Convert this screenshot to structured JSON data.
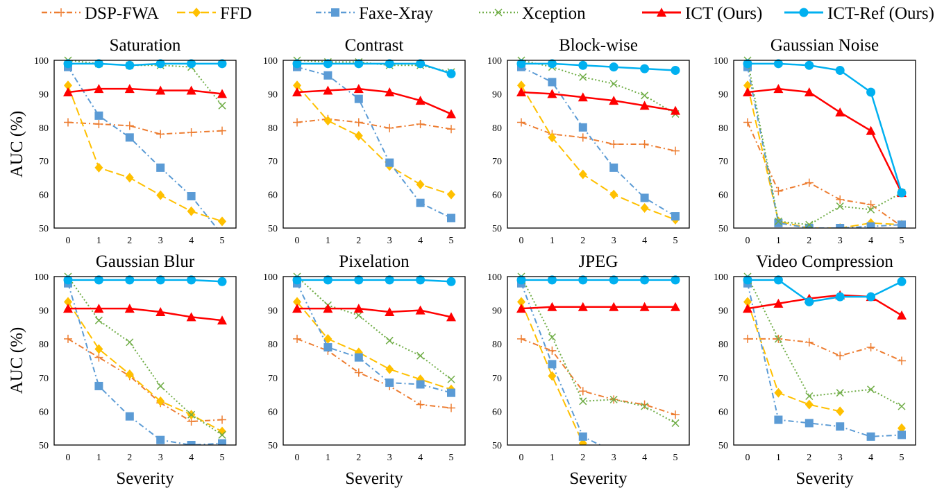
{
  "chart_data": {
    "type": "line",
    "legend_position": "top",
    "ylabel": "AUC (%)",
    "xlabel": "Severity",
    "x": [
      0,
      1,
      2,
      3,
      4,
      5
    ],
    "x_ticks": [
      "0",
      "1",
      "2",
      "3",
      "4",
      "5"
    ],
    "ylim": [
      50,
      100
    ],
    "y_ticks": [
      "50",
      "60",
      "70",
      "80",
      "90",
      "100"
    ],
    "grid": false,
    "series_styles": [
      {
        "name": "DSP-FWA",
        "color": "#ED7D31",
        "marker": "plus",
        "dash": "dash-dot"
      },
      {
        "name": "FFD",
        "color": "#FFC000",
        "marker": "diamond",
        "dash": "long-dash"
      },
      {
        "name": "Faxe-Xray",
        "color": "#5B9BD5",
        "marker": "square",
        "dash": "dash-dot"
      },
      {
        "name": "Xception",
        "color": "#70AD47",
        "marker": "x",
        "dash": "dotted"
      },
      {
        "name": "ICT (Ours)",
        "color": "#FF0000",
        "marker": "triangle",
        "dash": "solid"
      },
      {
        "name": "ICT-Ref (Ours)",
        "color": "#00B0F0",
        "marker": "circle",
        "dash": "solid"
      }
    ],
    "panels": [
      {
        "title": "Saturation",
        "series": [
          [
            81.5,
            81,
            80.5,
            78,
            78.5,
            79
          ],
          [
            92.5,
            68,
            65,
            59.8,
            55,
            52
          ],
          [
            98,
            83.5,
            77,
            68,
            59.5,
            48
          ],
          [
            100,
            99,
            98.5,
            98.5,
            98,
            86.5
          ],
          [
            90.5,
            91.5,
            91.5,
            91,
            91,
            90
          ],
          [
            99,
            99,
            98.5,
            99,
            99,
            99
          ]
        ]
      },
      {
        "title": "Contrast",
        "series": [
          [
            81.5,
            82.5,
            81.5,
            79.8,
            81,
            79.5
          ],
          [
            92.5,
            82,
            77.5,
            68.5,
            63,
            60
          ],
          [
            98,
            95.5,
            88.5,
            69.5,
            57.5,
            53
          ],
          [
            100,
            99.5,
            99.5,
            98.5,
            98.5,
            96.5
          ],
          [
            90.5,
            91,
            91.5,
            90.5,
            88,
            84
          ],
          [
            99,
            99,
            99,
            99,
            99,
            96
          ]
        ]
      },
      {
        "title": "Block-wise",
        "series": [
          [
            81.5,
            78,
            77,
            75,
            75,
            73
          ],
          [
            92.5,
            77,
            66,
            60,
            56,
            52.5
          ],
          [
            98,
            93.5,
            80,
            68,
            59,
            53.5
          ],
          [
            100,
            98,
            95,
            93,
            89.5,
            84
          ],
          [
            90.5,
            90,
            89,
            88,
            86.5,
            85
          ],
          [
            99,
            99,
            98.5,
            98,
            97.5,
            97
          ]
        ]
      },
      {
        "title": "Gaussian Noise",
        "series": [
          [
            81.5,
            61,
            63.5,
            58.5,
            57,
            50.5
          ],
          [
            92.5,
            52,
            50,
            50,
            51.5,
            51
          ],
          [
            98,
            51.5,
            50,
            50,
            50.5,
            51
          ],
          [
            100,
            52,
            51,
            56.5,
            55.5,
            60.5
          ],
          [
            90.5,
            91.5,
            90.5,
            84.5,
            79,
            60.5
          ],
          [
            99,
            99,
            98.5,
            97,
            90.5,
            60.5
          ]
        ]
      },
      {
        "title": "Gaussian Blur",
        "series": [
          [
            81.5,
            76,
            70.5,
            62.5,
            57,
            57.5
          ],
          [
            92.5,
            78.5,
            71,
            63,
            59,
            54
          ],
          [
            98,
            67.5,
            58.5,
            51.5,
            50,
            50.5
          ],
          [
            100,
            87,
            80.5,
            67.5,
            59,
            53
          ],
          [
            90.5,
            90.5,
            90.5,
            89.5,
            88,
            87
          ],
          [
            99,
            99,
            99,
            99,
            99,
            98.5
          ]
        ]
      },
      {
        "title": "Pixelation",
        "series": [
          [
            81.5,
            78,
            71.5,
            67.5,
            62,
            61
          ],
          [
            92.5,
            81.5,
            77.5,
            72.5,
            69.5,
            66.5
          ],
          [
            98,
            79,
            76,
            68.5,
            68,
            65.5
          ],
          [
            100,
            91.5,
            88.5,
            81,
            76.5,
            69.5
          ],
          [
            90.5,
            90.5,
            90.5,
            89.5,
            90,
            88
          ],
          [
            99,
            99,
            99,
            99,
            99,
            98.5
          ]
        ]
      },
      {
        "title": "JPEG",
        "series": [
          [
            81.5,
            78,
            66,
            63.5,
            62,
            59
          ],
          [
            92.5,
            70.5,
            50.5,
            null,
            null,
            null
          ],
          [
            98,
            74,
            52.5,
            48,
            null,
            null
          ],
          [
            100,
            82,
            63,
            63.5,
            61.5,
            56.5
          ],
          [
            90.5,
            91,
            91,
            91,
            91,
            91
          ],
          [
            99,
            99,
            99,
            99,
            99,
            99
          ]
        ]
      },
      {
        "title": "Video Compression",
        "series": [
          [
            81.5,
            81.5,
            80.5,
            76.5,
            79,
            75
          ],
          [
            92.5,
            65.5,
            62,
            60,
            null,
            55
          ],
          [
            98,
            57.5,
            56.5,
            55.5,
            52.5,
            53
          ],
          [
            100,
            81.5,
            64.5,
            65.5,
            66.5,
            61.5
          ],
          [
            90.5,
            92,
            93.5,
            94.5,
            94,
            88.5
          ],
          [
            99,
            99,
            92.5,
            94,
            94,
            98.5
          ]
        ]
      }
    ]
  }
}
